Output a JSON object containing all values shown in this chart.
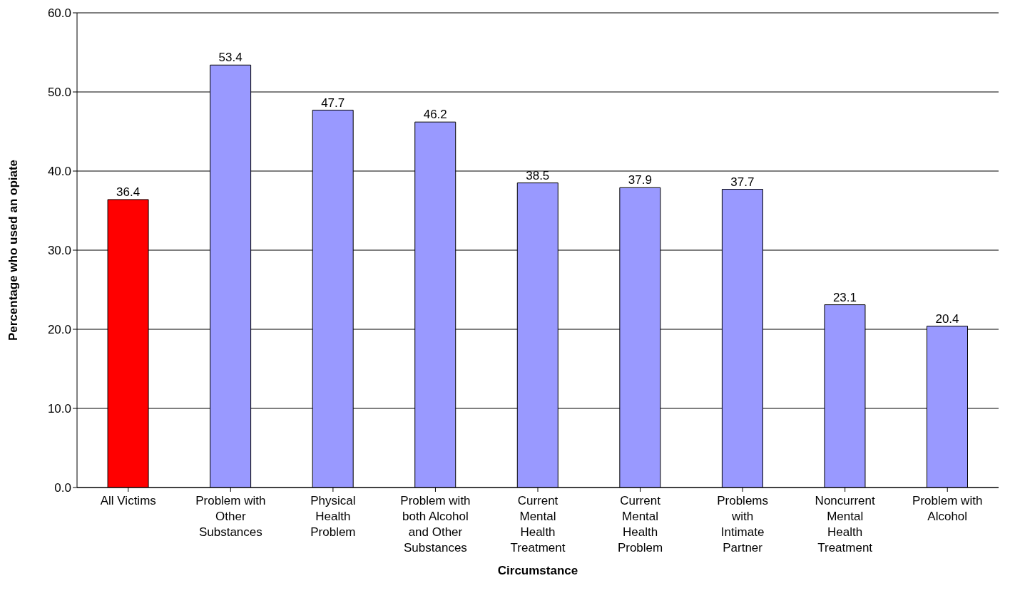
{
  "chart_data": {
    "type": "bar",
    "xlabel": "Circumstance",
    "ylabel": "Percentage who used an opiate",
    "categories": [
      "All Victims",
      "Problem with Other Substances",
      "Physical Health Problem",
      "Problem with both Alcohol and Other Substances",
      "Current Mental Health Treatment",
      "Current Mental Health Problem",
      "Problems with Intimate Partner",
      "Noncurrent Mental Health Treatment",
      "Problem with Alcohol"
    ],
    "values": [
      36.4,
      53.4,
      47.7,
      46.2,
      38.5,
      37.9,
      37.7,
      23.1,
      20.4
    ],
    "colors": [
      "#ff0000",
      "#9999ff",
      "#9999ff",
      "#9999ff",
      "#9999ff",
      "#9999ff",
      "#9999ff",
      "#9999ff",
      "#9999ff"
    ],
    "ylim": [
      0,
      60
    ],
    "yticks": [
      {
        "value": 0,
        "label": "0.0"
      },
      {
        "value": 10,
        "label": "10.0"
      },
      {
        "value": 20,
        "label": "20.0"
      },
      {
        "value": 30,
        "label": "30.0"
      },
      {
        "value": 40,
        "label": "40.0"
      },
      {
        "value": 50,
        "label": "50.0"
      },
      {
        "value": 60,
        "label": "60.0"
      }
    ],
    "grid": "y",
    "data_labels": true,
    "legend": false
  }
}
